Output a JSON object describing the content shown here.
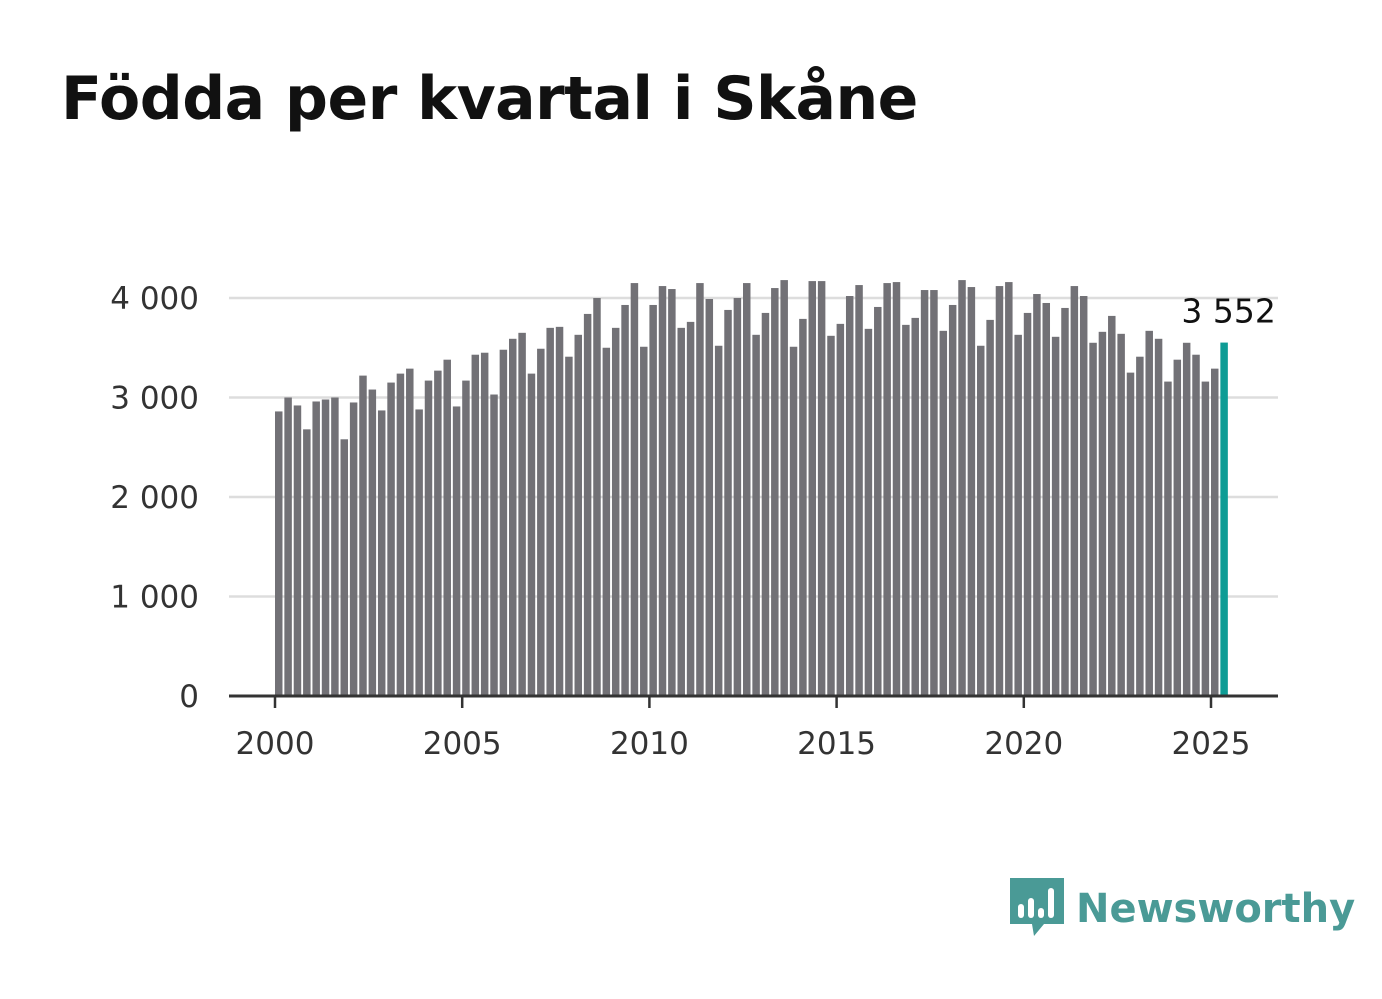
{
  "title": "Födda per kvartal i Skåne",
  "brand": {
    "name": "Newsworthy",
    "icon": "bar-chart-bubble-icon"
  },
  "colors": {
    "bar": "#727176",
    "highlight": "#0e9c95",
    "grid": "#dddddd",
    "axis": "#333333",
    "brand": "#4a9a96"
  },
  "chart_data": {
    "type": "bar",
    "title": "Födda per kvartal i Skåne",
    "xlabel": "",
    "ylabel": "",
    "ylim": [
      0,
      4000
    ],
    "yticks": [
      0,
      1000,
      2000,
      3000,
      4000
    ],
    "ytick_labels": [
      "0",
      "1 000",
      "2 000",
      "3 000",
      "4 000"
    ],
    "xticks": [
      2000,
      2005,
      2010,
      2015,
      2020,
      2025
    ],
    "xtick_labels": [
      "2000",
      "2005",
      "2010",
      "2015",
      "2020",
      "2025"
    ],
    "grid": true,
    "x_start": "2000-Q1",
    "frequency": "quarterly",
    "values": [
      2860,
      3000,
      2920,
      2680,
      2960,
      2980,
      3000,
      2580,
      2950,
      3220,
      3080,
      2870,
      3150,
      3240,
      3290,
      2880,
      3170,
      3270,
      3380,
      2910,
      3170,
      3430,
      3450,
      3030,
      3480,
      3590,
      3650,
      3240,
      3490,
      3700,
      3710,
      3410,
      3630,
      3840,
      4000,
      3500,
      3700,
      3930,
      4150,
      3510,
      3930,
      4120,
      4090,
      3700,
      3760,
      4150,
      3990,
      3520,
      3880,
      4000,
      4150,
      3630,
      3850,
      4100,
      4180,
      3510,
      3790,
      4170,
      4170,
      3620,
      3740,
      4020,
      4130,
      3690,
      3910,
      4150,
      4160,
      3730,
      3800,
      4080,
      4080,
      3670,
      3930,
      4180,
      4110,
      3520,
      3780,
      4120,
      4160,
      3630,
      3850,
      4040,
      3950,
      3610,
      3900,
      4120,
      4020,
      3550,
      3660,
      3820,
      3640,
      3250,
      3410,
      3670,
      3590,
      3160,
      3380,
      3550,
      3430,
      3160,
      3290,
      3552
    ],
    "highlight": {
      "index": 101,
      "value": 3552,
      "label": "3 552"
    }
  }
}
